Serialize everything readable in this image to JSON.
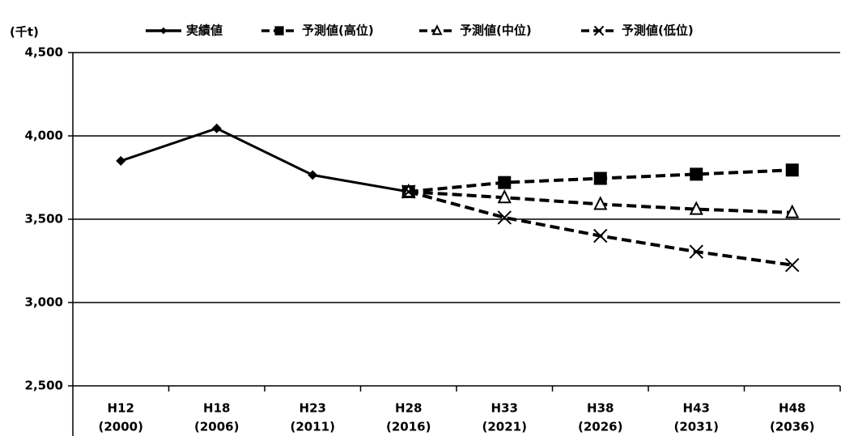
{
  "chart_data": {
    "type": "line",
    "y_unit_label": "(千t)",
    "categories": [
      [
        "H12",
        "(2000)"
      ],
      [
        "H18",
        "(2006)"
      ],
      [
        "H23",
        "(2011)"
      ],
      [
        "H28",
        "(2016)"
      ],
      [
        "H33",
        "(2021)"
      ],
      [
        "H38",
        "(2026)"
      ],
      [
        "H43",
        "(2031)"
      ],
      [
        "H48",
        "(2036)"
      ]
    ],
    "series": [
      {
        "name": "実績値",
        "color": "#000000",
        "marker": "diamond",
        "dashed": false,
        "values": [
          3850,
          4045,
          3765,
          3665,
          null,
          null,
          null,
          null
        ]
      },
      {
        "name": "予測値(高位)",
        "color": "#000000",
        "marker": "square",
        "dashed": true,
        "values": [
          null,
          null,
          null,
          3665,
          3720,
          3745,
          3770,
          3795
        ]
      },
      {
        "name": "予測値(中位)",
        "color": "#000000",
        "marker": "triangle",
        "dashed": true,
        "values": [
          null,
          null,
          null,
          3665,
          3630,
          3590,
          3560,
          3540
        ]
      },
      {
        "name": "予測値(低位)",
        "color": "#000000",
        "marker": "x",
        "dashed": true,
        "values": [
          null,
          null,
          null,
          3665,
          3510,
          3400,
          3305,
          3225
        ]
      }
    ],
    "ylim": [
      2500,
      4500
    ],
    "yticks": [
      {
        "value": 2500,
        "label": "2,500"
      },
      {
        "value": 3000,
        "label": "3,000"
      },
      {
        "value": 3500,
        "label": "3,500"
      },
      {
        "value": 4000,
        "label": "4,000"
      },
      {
        "value": 4500,
        "label": "4,500"
      }
    ],
    "grid": true
  }
}
